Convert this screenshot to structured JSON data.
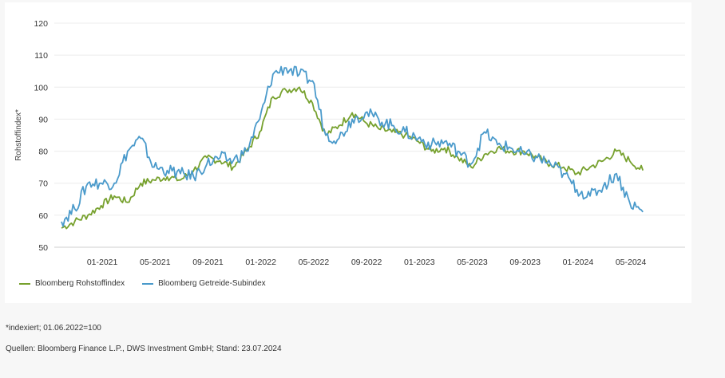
{
  "chart_data": {
    "type": "line",
    "ylabel": "Rohstoffindex*",
    "ylim": [
      50,
      120
    ],
    "yticks": [
      50,
      60,
      70,
      80,
      90,
      100,
      110,
      120
    ],
    "xtick_labels": [
      "01-2021",
      "05-2021",
      "09-2021",
      "01-2022",
      "05-2022",
      "09-2022",
      "01-2023",
      "05-2023",
      "09-2023",
      "01-2024",
      "05-2024"
    ],
    "grid": "horizontal",
    "legend_position": "bottom-left",
    "series": [
      {
        "name": "Bloomberg Rohstoffindex",
        "color": "#77a12e",
        "x": [
          "2020-11",
          "2020-12",
          "2021-01",
          "2021-02",
          "2021-03",
          "2021-04",
          "2021-05",
          "2021-06",
          "2021-07",
          "2021-08",
          "2021-09",
          "2021-10",
          "2021-11",
          "2021-12",
          "2022-01",
          "2022-02",
          "2022-03",
          "2022-04",
          "2022-05",
          "2022-06",
          "2022-07",
          "2022-08",
          "2022-09",
          "2022-10",
          "2022-11",
          "2022-12",
          "2023-01",
          "2023-02",
          "2023-03",
          "2023-04",
          "2023-05",
          "2023-06",
          "2023-07",
          "2023-08",
          "2023-09",
          "2023-10",
          "2023-11",
          "2023-12",
          "2024-01",
          "2024-02",
          "2024-03",
          "2024-04",
          "2024-05",
          "2024-06",
          "2024-07"
        ],
        "values": [
          56,
          58,
          60,
          63,
          66,
          64,
          70,
          71,
          72,
          71,
          74,
          78,
          77,
          75,
          80,
          86,
          97,
          99,
          100,
          95,
          85,
          88,
          92,
          89,
          87,
          86,
          85,
          83,
          80,
          81,
          78,
          75,
          79,
          81,
          80,
          80,
          78,
          76,
          75,
          73,
          75,
          77,
          80,
          77,
          74
        ]
      },
      {
        "name": "Bloomberg Getreide-Subindex",
        "color": "#4a9acb",
        "x": [
          "2020-11",
          "2020-12",
          "2021-01",
          "2021-02",
          "2021-03",
          "2021-04",
          "2021-05",
          "2021-06",
          "2021-07",
          "2021-08",
          "2021-09",
          "2021-10",
          "2021-11",
          "2021-12",
          "2022-01",
          "2022-02",
          "2022-03",
          "2022-04",
          "2022-05",
          "2022-06",
          "2022-07",
          "2022-08",
          "2022-09",
          "2022-10",
          "2022-11",
          "2022-12",
          "2023-01",
          "2023-02",
          "2023-03",
          "2023-04",
          "2023-05",
          "2023-06",
          "2023-07",
          "2023-08",
          "2023-09",
          "2023-10",
          "2023-11",
          "2023-12",
          "2024-01",
          "2024-02",
          "2024-03",
          "2024-04",
          "2024-05",
          "2024-06",
          "2024-07"
        ],
        "values": [
          58,
          62,
          70,
          70,
          70,
          80,
          84,
          75,
          74,
          73,
          72,
          76,
          78,
          77,
          80,
          90,
          104,
          106,
          104,
          102,
          85,
          84,
          90,
          92,
          90,
          88,
          86,
          84,
          82,
          83,
          80,
          76,
          86,
          82,
          81,
          79,
          78,
          76,
          73,
          68,
          66,
          69,
          73,
          64,
          61
        ]
      }
    ]
  },
  "footnotes": {
    "indexed": "*indexiert; 01.06.2022=100",
    "sources": "Quellen: Bloomberg Finance L.P., DWS Investment GmbH; Stand: 23.07.2024"
  }
}
